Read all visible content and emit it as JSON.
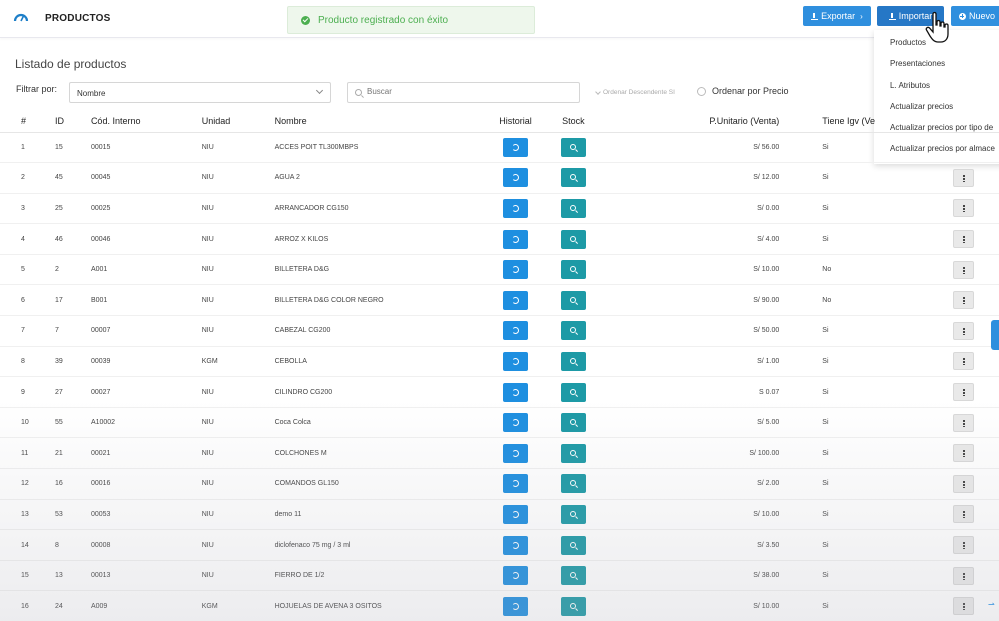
{
  "header": {
    "module_title": "PRODUCTOS",
    "toast_message": "Producto registrado con éxito",
    "buttons": {
      "export": "Exportar",
      "import": "Importar",
      "new": "Nuevo"
    },
    "import_menu": [
      "Productos",
      "Presentaciones",
      "L. Atributos",
      "Actualizar precios",
      "Actualizar precios por tipo de",
      "Actualizar precios por almace"
    ]
  },
  "section_title": "Listado de productos",
  "filters": {
    "filter_label": "Filtrar por:",
    "filter_value": "Nombre",
    "search_placeholder": "Buscar",
    "order_desc": "Ordenar Descendente SI",
    "order_price": "Ordenar por Precio"
  },
  "table": {
    "headers": [
      "#",
      "ID",
      "Cód. Interno",
      "Unidad",
      "Nombre",
      "Historial",
      "Stock",
      "P.Unitario (Venta)",
      "Tiene Igv (Ve"
    ],
    "rows": [
      {
        "n": "1",
        "id": "15",
        "code": "00015",
        "unit": "NIU",
        "name": "ACCES POIT TL300MBPS",
        "price": "S/ 56.00",
        "igv": "Si"
      },
      {
        "n": "2",
        "id": "45",
        "code": "00045",
        "unit": "NIU",
        "name": "AGUA 2",
        "price": "S/ 12.00",
        "igv": "Si"
      },
      {
        "n": "3",
        "id": "25",
        "code": "00025",
        "unit": "NIU",
        "name": "ARRANCADOR CG150",
        "price": "S/ 0.00",
        "igv": "Si"
      },
      {
        "n": "4",
        "id": "46",
        "code": "00046",
        "unit": "NIU",
        "name": "ARROZ X KILOS",
        "price": "S/ 4.00",
        "igv": "Si"
      },
      {
        "n": "5",
        "id": "2",
        "code": "A001",
        "unit": "NIU",
        "name": "BILLETERA D&G",
        "price": "S/ 10.00",
        "igv": "No"
      },
      {
        "n": "6",
        "id": "17",
        "code": "B001",
        "unit": "NIU",
        "name": "BILLETERA D&G COLOR NEGRO",
        "price": "S/ 90.00",
        "igv": "No"
      },
      {
        "n": "7",
        "id": "7",
        "code": "00007",
        "unit": "NIU",
        "name": "CABEZAL CG200",
        "price": "S/ 50.00",
        "igv": "Si"
      },
      {
        "n": "8",
        "id": "39",
        "code": "00039",
        "unit": "KGM",
        "name": "CEBOLLA",
        "price": "S/ 1.00",
        "igv": "Si"
      },
      {
        "n": "9",
        "id": "27",
        "code": "00027",
        "unit": "NIU",
        "name": "CILINDRO CG200",
        "price": "S 0.07",
        "igv": "Si"
      },
      {
        "n": "10",
        "id": "55",
        "code": "A10002",
        "unit": "NIU",
        "name": "Coca Colca",
        "price": "S/ 5.00",
        "igv": "Si"
      },
      {
        "n": "11",
        "id": "21",
        "code": "00021",
        "unit": "NIU",
        "name": "COLCHONES M",
        "price": "S/ 100.00",
        "igv": "Si"
      },
      {
        "n": "12",
        "id": "16",
        "code": "00016",
        "unit": "NIU",
        "name": "COMANDOS GL150",
        "price": "S/ 2.00",
        "igv": "Si"
      },
      {
        "n": "13",
        "id": "53",
        "code": "00053",
        "unit": "NIU",
        "name": "demo 11",
        "price": "S/ 10.00",
        "igv": "Si"
      },
      {
        "n": "14",
        "id": "8",
        "code": "00008",
        "unit": "NIU",
        "name": "diclofenaco 75 mg / 3 ml",
        "price": "S/ 3.50",
        "igv": "Si"
      },
      {
        "n": "15",
        "id": "13",
        "code": "00013",
        "unit": "NIU",
        "name": "FIERRO DE 1/2",
        "price": "S/ 38.00",
        "igv": "Si"
      },
      {
        "n": "16",
        "id": "24",
        "code": "A009",
        "unit": "KGM",
        "name": "HOJUELAS DE AVENA 3 OSITOS",
        "price": "S/ 10.00",
        "igv": "Si"
      }
    ]
  },
  "colors": {
    "primary": "#2f8fde",
    "stock_button": "#1d9aa6",
    "success": "#4caf50"
  },
  "icons": {
    "app": "dashboard-icon",
    "toast": "check-circle-icon",
    "history": "history-icon",
    "stock": "search-icon",
    "actions": "dots-vertical-icon"
  }
}
